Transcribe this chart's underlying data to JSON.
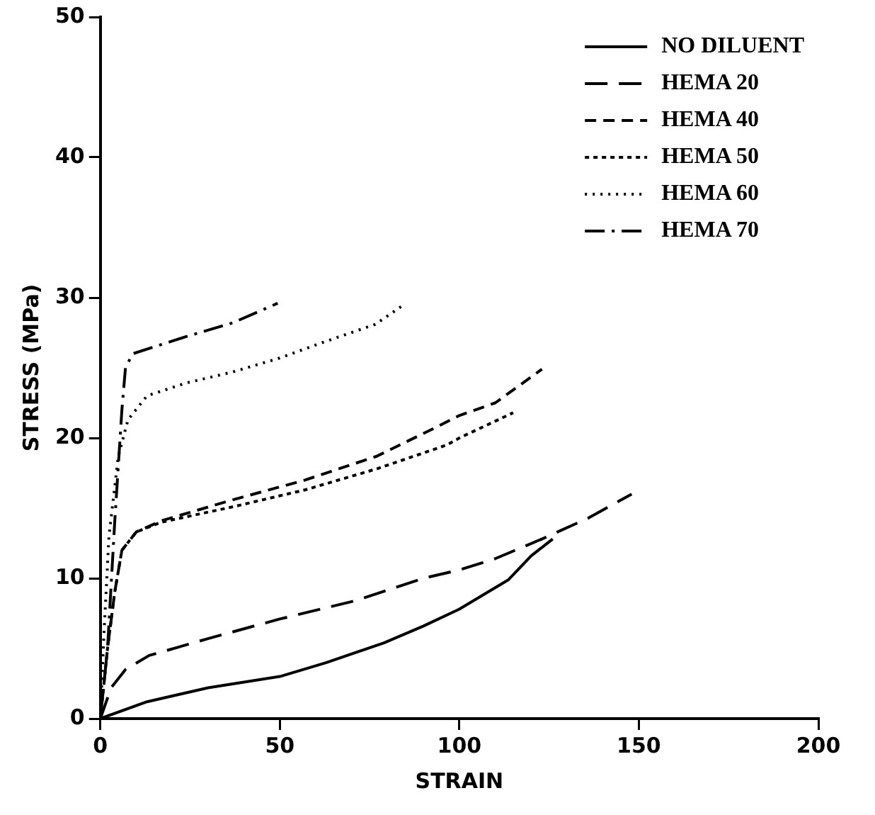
{
  "chart_data": {
    "type": "line",
    "xlabel": "STRAIN",
    "ylabel": "STRESS (MPa)",
    "xlim": [
      0,
      200
    ],
    "xticks": [
      0,
      50,
      100,
      150,
      200
    ],
    "ylim": [
      0,
      50
    ],
    "yticks": [
      0,
      10,
      20,
      30,
      40,
      50
    ],
    "legend": "top right",
    "marker": "none",
    "series": [
      {
        "name": "NO DILUENT",
        "color": "#000000",
        "line_style": "solid",
        "x": [
          0,
          13,
          30,
          50,
          63,
          79,
          90,
          100,
          113.7,
          120,
          126
        ],
        "values": [
          0,
          1.2,
          2.2,
          3.0,
          4.0,
          5.4,
          6.6,
          7.8,
          9.9,
          11.6,
          12.8
        ]
      },
      {
        "name": "HEMA 20",
        "color": "#000000",
        "line_style": "dashed",
        "x": [
          0,
          3,
          7,
          13.6,
          30,
          50,
          71,
          90,
          100,
          110,
          123,
          136,
          148
        ],
        "values": [
          0,
          2.2,
          3.5,
          4.5,
          5.7,
          7.1,
          8.4,
          10.0,
          10.6,
          11.4,
          12.8,
          14.3,
          16.0
        ]
      },
      {
        "name": "HEMA 40",
        "color": "#000000",
        "line_style": "dashed",
        "x": [
          0,
          2,
          4,
          6,
          10,
          17,
          37,
          57,
          77,
          93,
          100,
          110,
          123
        ],
        "values": [
          0,
          5,
          9,
          12,
          13.3,
          14.1,
          15.6,
          17.0,
          18.7,
          20.7,
          21.6,
          22.5,
          24.9
        ]
      },
      {
        "name": "HEMA 50",
        "color": "#000000",
        "line_style": "dotted",
        "x": [
          0,
          2,
          4,
          6,
          10,
          17,
          37,
          57,
          77,
          96.5,
          100,
          115
        ],
        "values": [
          0,
          5,
          9,
          12,
          13.3,
          14.0,
          15.1,
          16.3,
          17.8,
          19.5,
          20.0,
          21.8
        ]
      },
      {
        "name": "HEMA 60",
        "color": "#000000",
        "line_style": "dotted",
        "x": [
          0,
          1,
          2.4,
          5,
          7.7,
          13,
          23.6,
          36.8,
          50,
          63,
          76.6,
          84
        ],
        "values": [
          0,
          6,
          13,
          18.7,
          21.3,
          23.0,
          23.9,
          24.7,
          25.7,
          26.9,
          28.1,
          29.4
        ]
      },
      {
        "name": "HEMA 70",
        "color": "#000000",
        "line_style": "dashdot",
        "x": [
          0,
          2,
          4,
          6,
          7,
          9,
          23.6,
          36.8,
          49.4
        ],
        "values": [
          0,
          5,
          14,
          22,
          25,
          26.0,
          27.2,
          28.2,
          29.6
        ]
      }
    ]
  }
}
